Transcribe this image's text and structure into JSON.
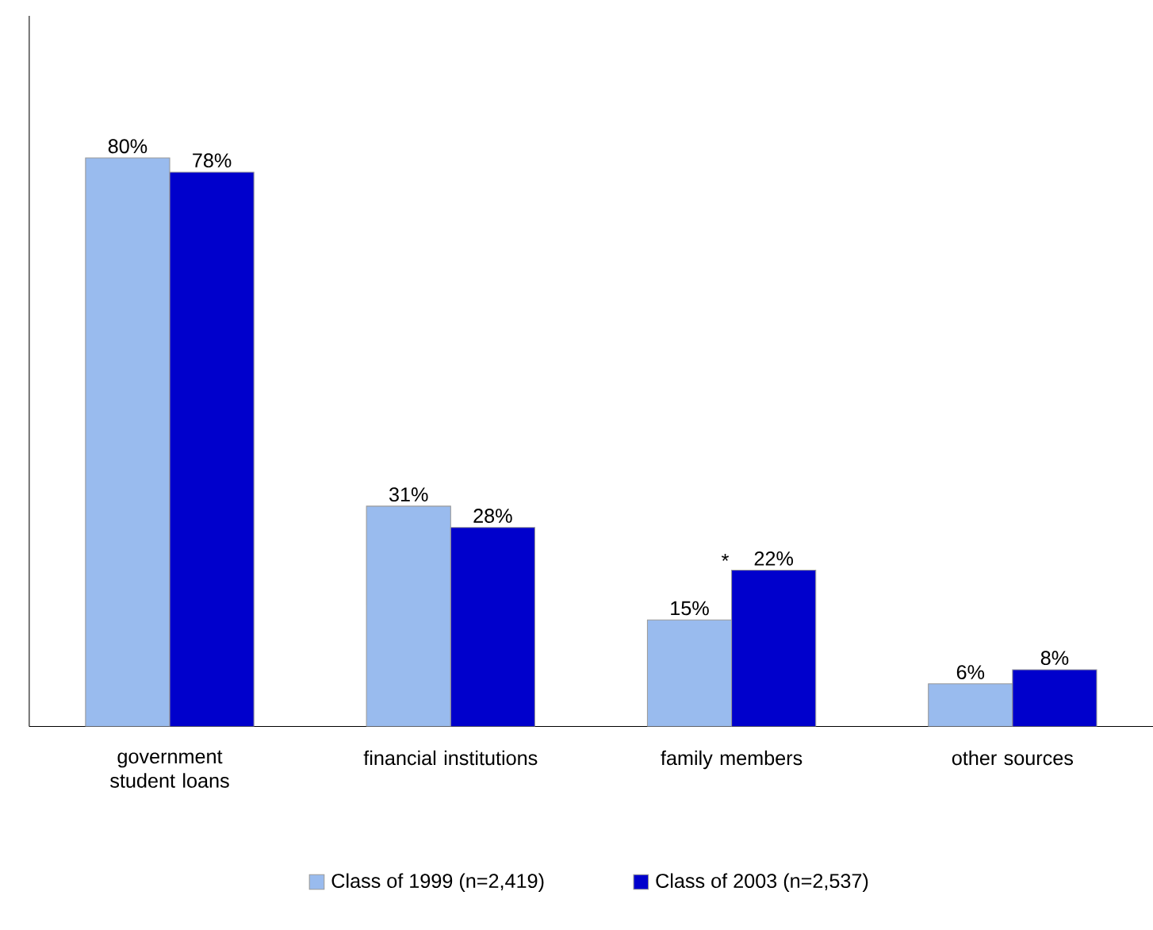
{
  "chart_data": {
    "type": "bar",
    "categories": [
      "government student loans",
      "financial institutions",
      "family members",
      "other sources"
    ],
    "series": [
      {
        "name": "Class of 1999 (n=2,419)",
        "color": "#99bbee",
        "values": [
          80,
          31,
          15,
          6
        ],
        "value_labels": [
          "80%",
          "31%",
          "15%",
          "6%"
        ]
      },
      {
        "name": "Class of 2003 (n=2,537)",
        "color": "#0000cc",
        "values": [
          78,
          28,
          22,
          8
        ],
        "value_labels": [
          "78%",
          "28%",
          "22%",
          "8%"
        ]
      }
    ],
    "annotations": [
      {
        "text": "*",
        "x": "family members",
        "y": 22
      }
    ],
    "legend": "bottom"
  }
}
